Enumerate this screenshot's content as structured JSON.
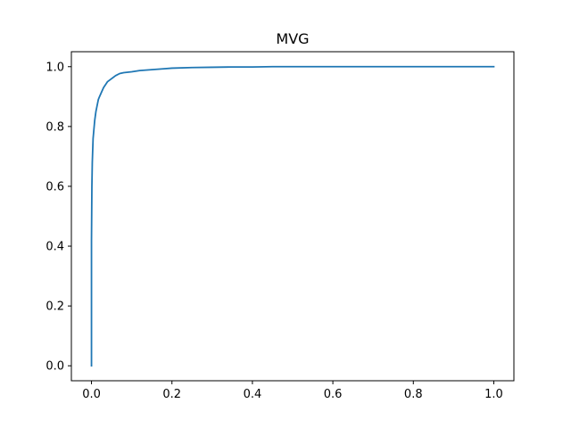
{
  "chart_data": {
    "type": "line",
    "title": "MVG",
    "xlabel": "",
    "ylabel": "",
    "xlim": [
      -0.05,
      1.05
    ],
    "ylim": [
      -0.05,
      1.05
    ],
    "x_ticks": [
      0.0,
      0.2,
      0.4,
      0.6,
      0.8,
      1.0
    ],
    "x_tick_labels": [
      "0.0",
      "0.2",
      "0.4",
      "0.6",
      "0.8",
      "1.0"
    ],
    "y_ticks": [
      0.0,
      0.2,
      0.4,
      0.6,
      0.8,
      1.0
    ],
    "y_tick_labels": [
      "0.0",
      "0.2",
      "0.4",
      "0.6",
      "0.8",
      "1.0"
    ],
    "grid": false,
    "series_color": "#1f77b4",
    "x": [
      0.0,
      0.0,
      0.001,
      0.002,
      0.003,
      0.004,
      0.006,
      0.008,
      0.011,
      0.014,
      0.017,
      0.02,
      0.025,
      0.03,
      0.035,
      0.04,
      0.05,
      0.06,
      0.07,
      0.08,
      0.1,
      0.12,
      0.15,
      0.18,
      0.2,
      0.25,
      0.3,
      0.35,
      0.4,
      0.45,
      0.5,
      0.6,
      0.7,
      0.8,
      0.9,
      1.0
    ],
    "y": [
      0.0,
      0.42,
      0.6,
      0.68,
      0.72,
      0.76,
      0.79,
      0.82,
      0.85,
      0.87,
      0.89,
      0.9,
      0.915,
      0.93,
      0.94,
      0.95,
      0.96,
      0.97,
      0.977,
      0.98,
      0.983,
      0.987,
      0.99,
      0.993,
      0.995,
      0.997,
      0.998,
      0.999,
      0.999,
      1.0,
      1.0,
      1.0,
      1.0,
      1.0,
      1.0,
      1.0
    ]
  }
}
